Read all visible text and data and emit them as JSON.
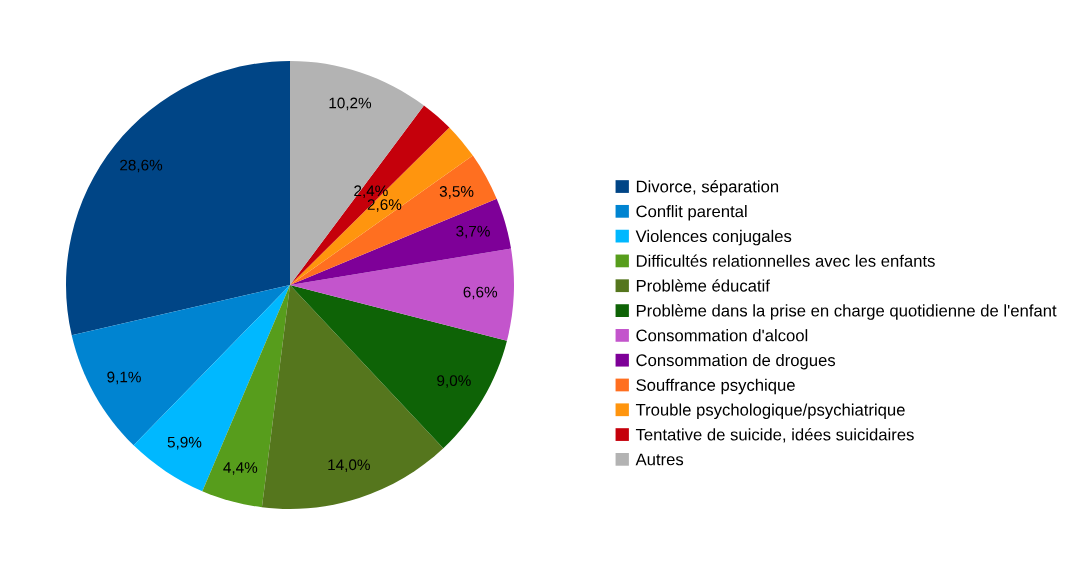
{
  "chart_data": {
    "type": "pie",
    "categories": [
      "Divorce, séparation",
      "Conflit parental",
      "Violences conjugales",
      "Difficultés relationnelles avec les enfants",
      "Problème éducatif",
      "Problème dans la prise en charge quotidienne de l'enfant",
      "Consommation d'alcool",
      "Consommation de drogues",
      "Souffrance psychique",
      "Trouble psychologique/psychiatrique",
      "Tentative de suicide, idées suicidaires",
      "Autres"
    ],
    "values": [
      28.6,
      9.1,
      5.9,
      4.4,
      14.0,
      9.0,
      6.6,
      3.7,
      3.5,
      2.6,
      2.4,
      10.2
    ],
    "value_labels": [
      "28,6%",
      "9,1%",
      "5,9%",
      "4,4%",
      "14,0%",
      "9,0%",
      "6,6%",
      "3,7%",
      "3,5%",
      "2,6%",
      "2,4%",
      "10,2%"
    ],
    "colors": [
      "#004586",
      "#0084d1",
      "#00b8ff",
      "#579d1c",
      "#55761d",
      "#0e6306",
      "#c355cc",
      "#7e0098",
      "#ff6f20",
      "#ff950e",
      "#c5000b",
      "#b3b3b3"
    ],
    "legend": "right"
  }
}
